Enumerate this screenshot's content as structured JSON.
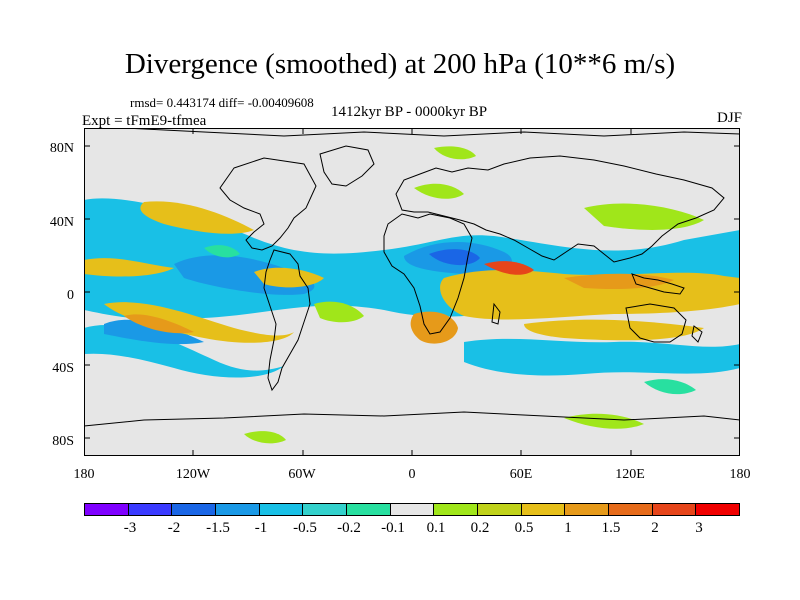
{
  "title": "Divergence (smoothed) at 200 hPa (10**6 m/s)",
  "stats": "rmsd= 0.443174 diff= -0.00409608",
  "experiment": "Expt = tFmE9-tfmea",
  "period": "1412kyr BP - 0000kyr BP",
  "season": "DJF",
  "colors": {
    "background": "#ffffff",
    "missing": "#e6e6e6",
    "coast": "#000000"
  },
  "lat_ticks": [
    "80N",
    "40N",
    "0",
    "40S",
    "80S"
  ],
  "lon_ticks": [
    "180",
    "120W",
    "60W",
    "0",
    "60E",
    "120E",
    "180"
  ],
  "colorbar": {
    "colors": [
      "#7f00ff",
      "#3a3aff",
      "#1a66e6",
      "#1a99e6",
      "#19c0e6",
      "#33d1cc",
      "#28e0a0",
      "#e6e6e6",
      "#a0e61a",
      "#c0d21a",
      "#e6bf1a",
      "#e69a1a",
      "#e66b1a",
      "#e6451a",
      "#f00000"
    ],
    "labels": [
      "-3",
      "-2",
      "-1.5",
      "-1",
      "-0.5",
      "-0.2",
      "-0.1",
      "0.1",
      "0.2",
      "0.5",
      "1",
      "1.5",
      "2",
      "3"
    ]
  },
  "map_icons": {
    "coastline": "world-coastline-icon"
  }
}
